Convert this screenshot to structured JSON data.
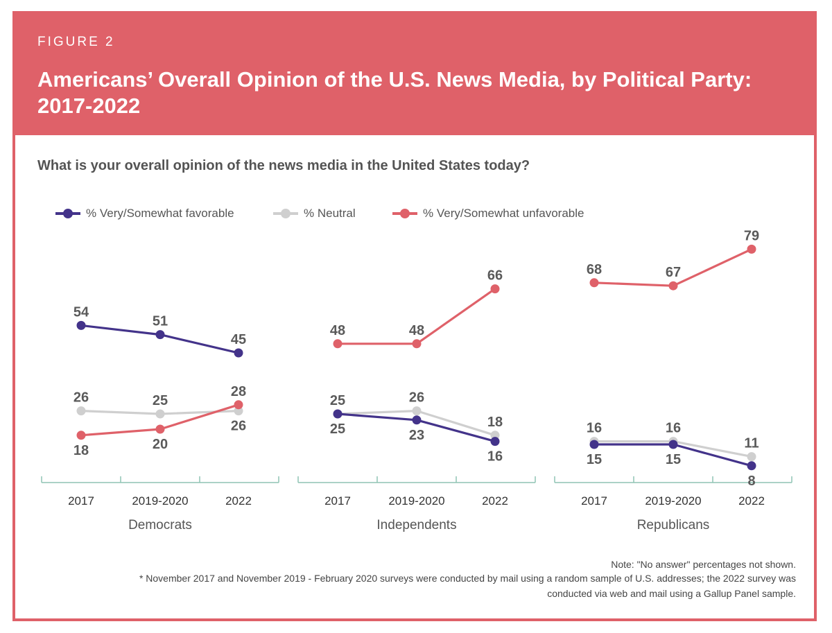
{
  "header": {
    "figure_label": "FIGURE 2",
    "title": "Americans’ Overall Opinion of the U.S. News Media, by Political Party: 2017-2022",
    "background_color": "#df6169"
  },
  "question": "What is your overall opinion of the news media in the United States today?",
  "legend": [
    {
      "label": "% Very/Somewhat favorable",
      "color": "#43338a"
    },
    {
      "label": "% Neutral",
      "color": "#cfcfcf"
    },
    {
      "label": "% Very/Somewhat unfavorable",
      "color": "#df6169"
    }
  ],
  "chart_data": {
    "type": "line",
    "ylim": [
      0,
      100
    ],
    "categories": [
      "2017",
      "2019-2020",
      "2022"
    ],
    "panels": [
      {
        "name": "Democrats",
        "series": [
          {
            "name": "% Very/Somewhat favorable",
            "values": [
              54,
              51,
              45
            ]
          },
          {
            "name": "% Neutral",
            "values": [
              26,
              25,
              26
            ]
          },
          {
            "name": "% Very/Somewhat unfavorable",
            "values": [
              18,
              20,
              28
            ]
          }
        ]
      },
      {
        "name": "Independents",
        "series": [
          {
            "name": "% Very/Somewhat favorable",
            "values": [
              25,
              23,
              16
            ]
          },
          {
            "name": "% Neutral",
            "values": [
              25,
              26,
              18
            ]
          },
          {
            "name": "% Very/Somewhat unfavorable",
            "values": [
              48,
              48,
              66
            ]
          }
        ]
      },
      {
        "name": "Republicans",
        "series": [
          {
            "name": "% Very/Somewhat favorable",
            "values": [
              15,
              15,
              8
            ]
          },
          {
            "name": "% Neutral",
            "values": [
              16,
              16,
              11
            ]
          },
          {
            "name": "% Very/Somewhat unfavorable",
            "values": [
              68,
              67,
              79
            ]
          }
        ]
      }
    ]
  },
  "notes": {
    "line1": "Note: \"No answer\" percentages not shown.",
    "line2": "* November 2017 and November 2019 - February 2020 surveys were conducted by mail using a random sample of U.S. addresses; the 2022 survey was",
    "line3": "conducted via web and mail using a Gallup Panel sample."
  }
}
